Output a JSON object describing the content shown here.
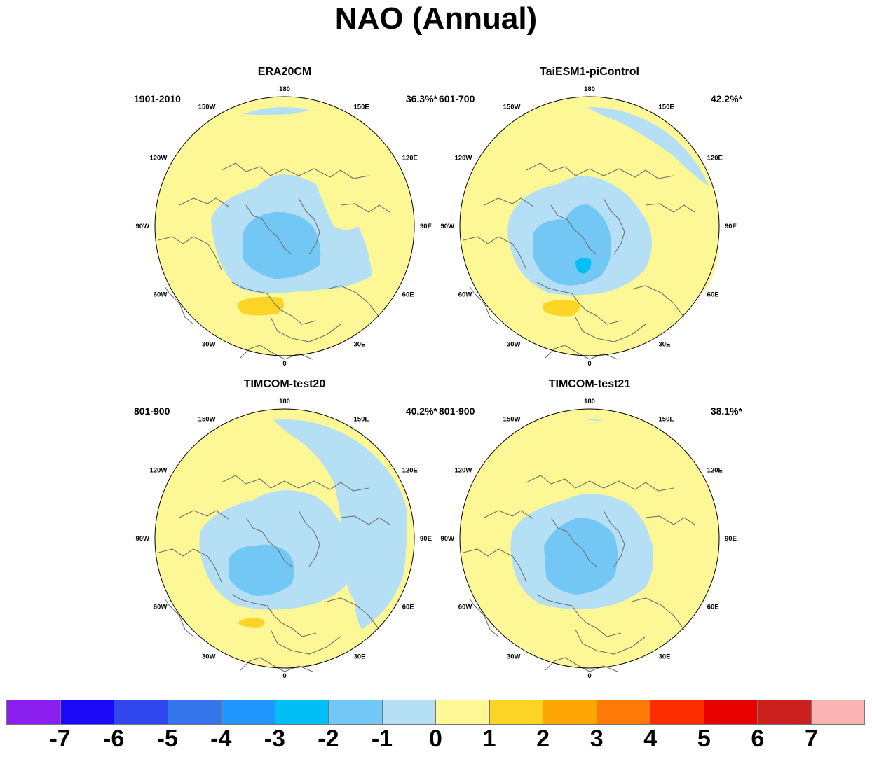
{
  "title": "NAO (Annual)",
  "colors": {
    "ocean_yellow": "#fdf795",
    "neg1": "#b4dff4",
    "neg2": "#73c7f4",
    "neg3": "#00bff5",
    "pos1": "#fcd426",
    "coast": "#6f6f6f"
  },
  "longitude_labels": {
    "top": "180",
    "bottom": "0",
    "left": "90W",
    "right": "90E",
    "tl": "150W",
    "tr": "150E",
    "ul": "120W",
    "ur": "120E",
    "ll": "60W",
    "lr": "60E",
    "bl": "30W",
    "br": "30E"
  },
  "panels": [
    {
      "title": "ERA20CM",
      "period": "1901-2010",
      "variance": "36.3%*"
    },
    {
      "title": "TaiESM1-piControl",
      "period": "601-700",
      "variance": "42.2%*"
    },
    {
      "title": "TIMCOM-test20",
      "period": "801-900",
      "variance": "40.2%*"
    },
    {
      "title": "TIMCOM-test21",
      "period": "801-900",
      "variance": "38.1%*"
    }
  ],
  "colorbar": {
    "colors": [
      "#8a1ff0",
      "#1c09f8",
      "#2f47ec",
      "#3576ec",
      "#1f97ff",
      "#00bff5",
      "#73c7f4",
      "#b4dff4",
      "#fdf795",
      "#fcd426",
      "#fca503",
      "#fc7a05",
      "#fc2e00",
      "#e80000",
      "#cc1f1f",
      "#fcb3b3"
    ],
    "labels": [
      "-7",
      "-6",
      "-5",
      "-4",
      "-3",
      "-2",
      "-1",
      "0",
      "1",
      "2",
      "3",
      "4",
      "5",
      "6",
      "7"
    ]
  }
}
